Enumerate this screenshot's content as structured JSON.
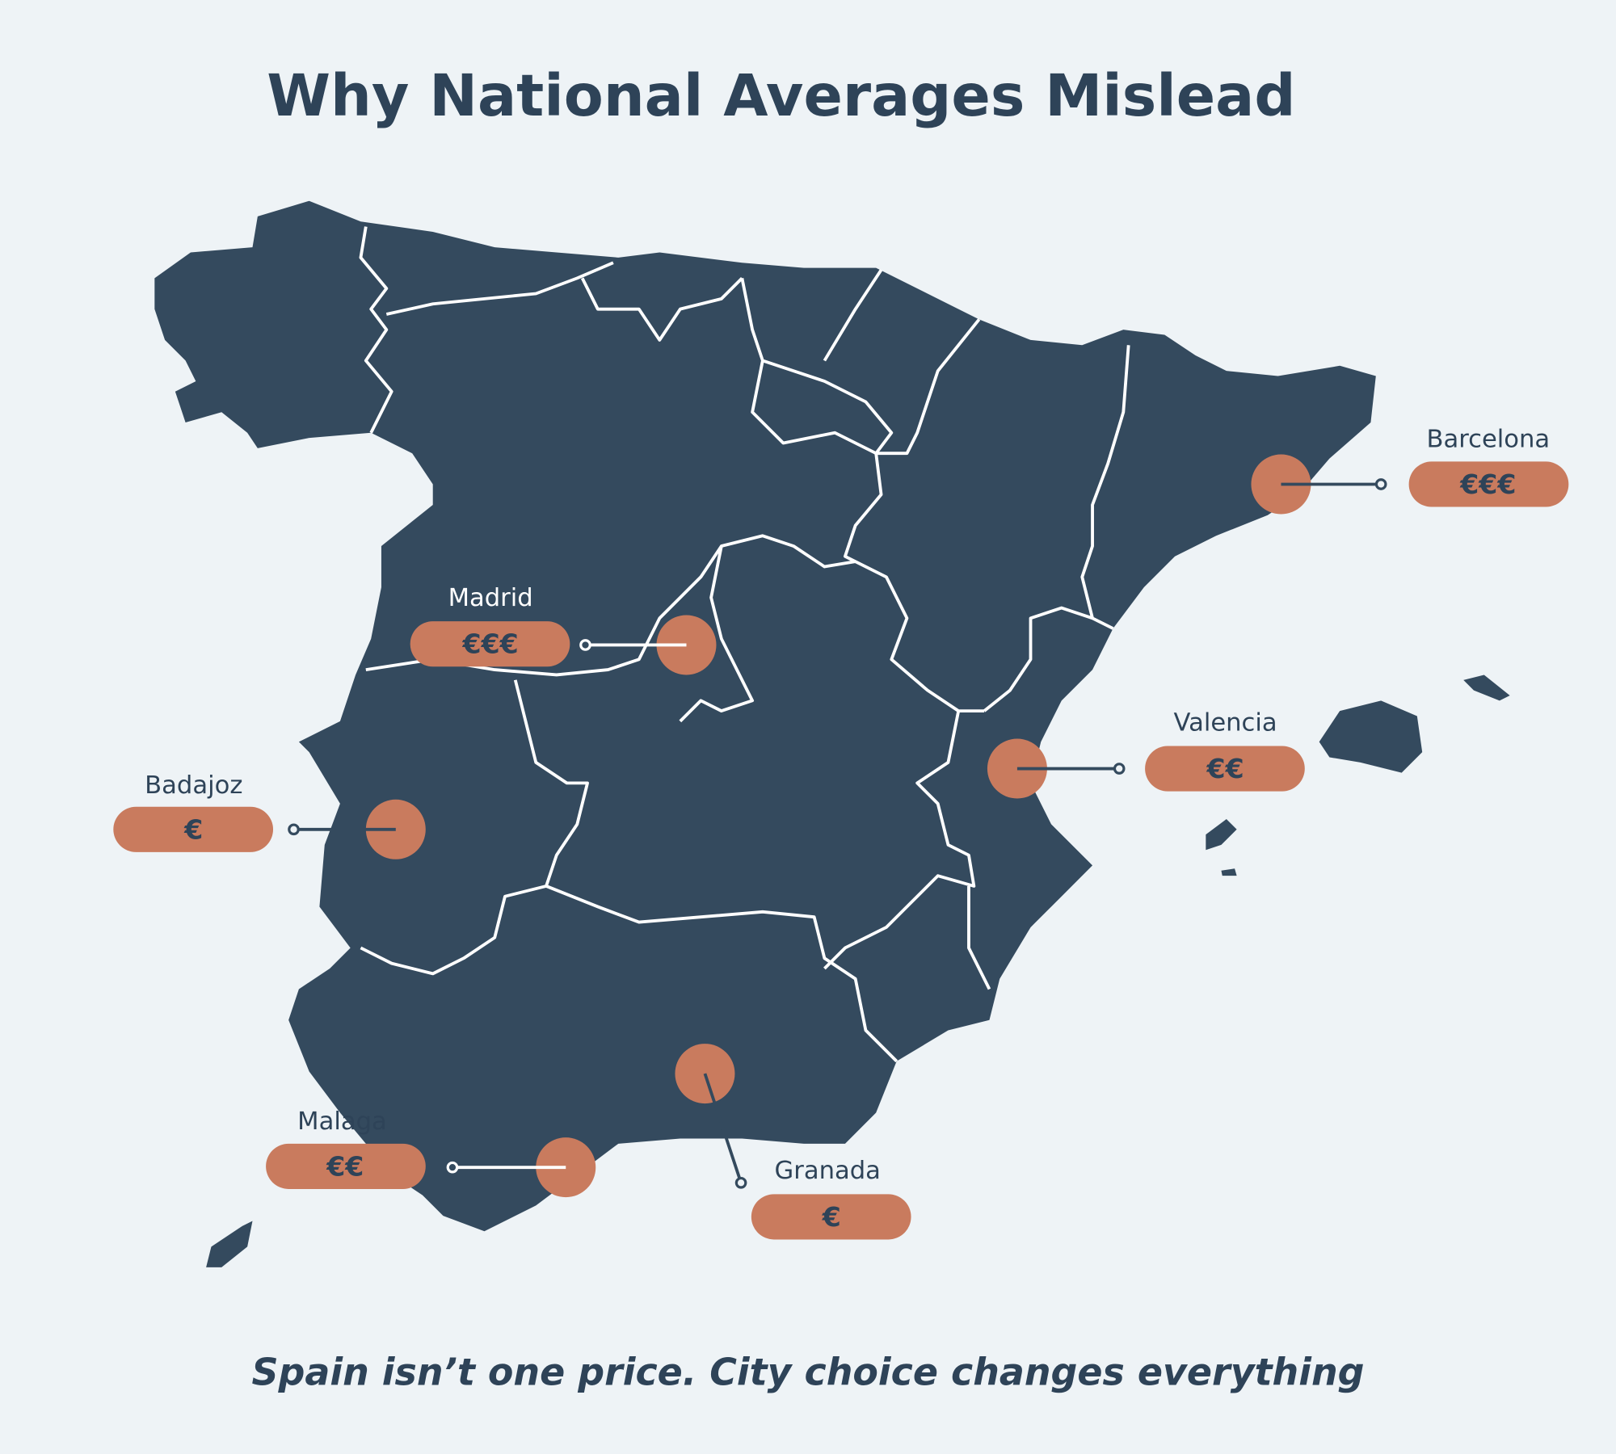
{
  "title": "Why National Averages Mislead",
  "subtitle": "Spain isn’t one price. City choice changes everything",
  "cities": [
    {
      "name": "Barcelona",
      "price": "€€€"
    },
    {
      "name": "Madrid",
      "price": "€€€"
    },
    {
      "name": "Valencia",
      "price": "€€"
    },
    {
      "name": "Badajoz",
      "price": "€"
    },
    {
      "name": "Malaga",
      "price": "€€"
    },
    {
      "name": "Granada",
      "price": "€"
    }
  ]
}
